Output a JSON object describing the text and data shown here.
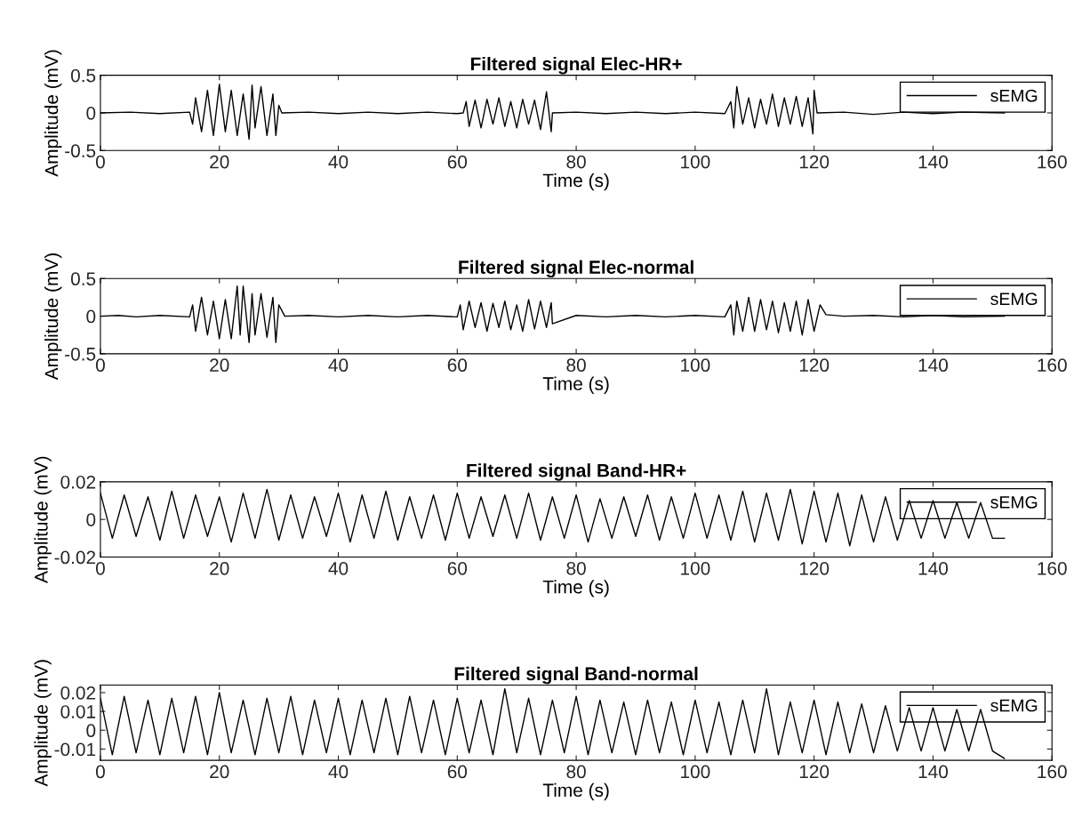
{
  "chart_data": [
    {
      "type": "line",
      "title": "Filtered signal Elec-HR+",
      "xlabel": "Time (s)",
      "ylabel": "Amplitude (mV)",
      "xlim": [
        0,
        160
      ],
      "xticks": [
        0,
        20,
        40,
        60,
        80,
        100,
        120,
        140,
        160
      ],
      "ylim": [
        -0.5,
        0.5
      ],
      "yticks": [
        -0.5,
        0,
        0.5
      ],
      "legend": "top right",
      "grid": false,
      "series": [
        {
          "name": "sEMG",
          "color": "#000000",
          "x": [
            0,
            5,
            10,
            15,
            15.5,
            16,
            17,
            18,
            19,
            20,
            21,
            22,
            23,
            24,
            25,
            25.5,
            26,
            27,
            28,
            29,
            29.5,
            30,
            30.5,
            35,
            40,
            45,
            50,
            55,
            60,
            61,
            61.5,
            62,
            63,
            64,
            65,
            66,
            67,
            68,
            69,
            70,
            71,
            72,
            73,
            74,
            75,
            75.8,
            76,
            80,
            85,
            90,
            95,
            100,
            105,
            106,
            106.5,
            107,
            108,
            109,
            110,
            111,
            112,
            113,
            114,
            115,
            116,
            117,
            118,
            119,
            119.8,
            120,
            120.5,
            125,
            130,
            135,
            140,
            145,
            152
          ],
          "values": [
            0,
            0.01,
            -0.01,
            0.01,
            -0.15,
            0.2,
            -0.25,
            0.3,
            -0.3,
            0.38,
            -0.25,
            0.3,
            -0.3,
            0.25,
            -0.35,
            0.37,
            -0.2,
            0.35,
            -0.3,
            0.25,
            -0.3,
            0.1,
            0,
            0.01,
            -0.01,
            0.01,
            -0.01,
            0.01,
            -0.01,
            0,
            0.15,
            -0.18,
            0.17,
            -0.2,
            0.18,
            -0.15,
            0.2,
            -0.18,
            0.15,
            -0.2,
            0.18,
            -0.15,
            0.17,
            -0.22,
            0.28,
            -0.25,
            0,
            0.01,
            -0.01,
            0.01,
            -0.01,
            0.01,
            -0.01,
            0.15,
            -0.2,
            0.35,
            -0.15,
            0.2,
            -0.2,
            0.18,
            -0.15,
            0.25,
            -0.18,
            0.2,
            -0.15,
            0.22,
            -0.18,
            0.2,
            -0.28,
            0.3,
            0,
            0.01,
            -0.02,
            0.01,
            -0.01,
            0.01,
            0
          ]
        }
      ]
    },
    {
      "type": "line",
      "title": "Filtered signal Elec-normal",
      "xlabel": "Time (s)",
      "ylabel": "Amplitude (mV)",
      "xlim": [
        0,
        160
      ],
      "xticks": [
        0,
        20,
        40,
        60,
        80,
        100,
        120,
        140,
        160
      ],
      "ylim": [
        -0.5,
        0.5
      ],
      "yticks": [
        -0.5,
        0,
        0.5
      ],
      "legend": "top right",
      "grid": false,
      "series": [
        {
          "name": "sEMG",
          "color": "#000000",
          "x": [
            0,
            3,
            6,
            10,
            15,
            15.5,
            16,
            17,
            18,
            19,
            20,
            21,
            22,
            23,
            23.5,
            24,
            25,
            25.5,
            26,
            27,
            28,
            29,
            29.5,
            30,
            31,
            35,
            40,
            45,
            50,
            55,
            60,
            60.5,
            61,
            62,
            63,
            64,
            65,
            66,
            67,
            68,
            69,
            70,
            71,
            72,
            73,
            74,
            75,
            75.8,
            76,
            80,
            85,
            90,
            95,
            100,
            105,
            106,
            106.5,
            107,
            108,
            109,
            110,
            111,
            112,
            113,
            114,
            115,
            116,
            117,
            118,
            119,
            120,
            121,
            122,
            125,
            130,
            135,
            140,
            145,
            152
          ],
          "values": [
            0,
            0.01,
            -0.01,
            0.01,
            -0.01,
            0.15,
            -0.2,
            0.25,
            -0.25,
            0.2,
            -0.3,
            0.22,
            -0.3,
            0.4,
            -0.25,
            0.4,
            -0.35,
            0.3,
            -0.25,
            0.3,
            -0.28,
            0.25,
            -0.35,
            0.15,
            0,
            0.01,
            -0.01,
            0.01,
            -0.01,
            0.01,
            -0.01,
            0.15,
            -0.18,
            0.2,
            -0.15,
            0.18,
            -0.2,
            0.17,
            -0.15,
            0.2,
            -0.18,
            0.15,
            -0.2,
            0.22,
            -0.17,
            0.2,
            -0.15,
            0.18,
            -0.1,
            0.01,
            -0.01,
            0.01,
            -0.01,
            0.01,
            -0.01,
            0.15,
            -0.25,
            0.2,
            -0.2,
            0.25,
            -0.2,
            0.22,
            -0.18,
            0.2,
            -0.22,
            0.18,
            -0.2,
            0.2,
            -0.25,
            0.22,
            -0.2,
            0.15,
            0.02,
            0,
            0.01,
            -0.01,
            0.01,
            -0.01,
            0
          ]
        }
      ]
    },
    {
      "type": "line",
      "title": "Filtered signal Band-HR+",
      "xlabel": "Time (s)",
      "ylabel": "Amplitude (mV)",
      "xlim": [
        0,
        160
      ],
      "xticks": [
        0,
        20,
        40,
        60,
        80,
        100,
        120,
        140,
        160
      ],
      "ylim": [
        -0.02,
        0.02
      ],
      "yticks": [
        -0.02,
        0,
        0.02
      ],
      "legend": "top right",
      "grid": false,
      "series": [
        {
          "name": "sEMG",
          "color": "#000000",
          "x": [
            0,
            2,
            4,
            6,
            8,
            10,
            12,
            14,
            16,
            18,
            20,
            22,
            24,
            26,
            28,
            30,
            32,
            34,
            36,
            38,
            40,
            42,
            44,
            46,
            48,
            50,
            52,
            54,
            56,
            58,
            60,
            62,
            64,
            66,
            68,
            70,
            72,
            74,
            76,
            78,
            80,
            82,
            84,
            86,
            88,
            90,
            92,
            94,
            96,
            98,
            100,
            102,
            104,
            106,
            108,
            110,
            112,
            114,
            116,
            118,
            120,
            122,
            124,
            126,
            128,
            130,
            132,
            134,
            136,
            138,
            140,
            142,
            144,
            146,
            148,
            150,
            152
          ],
          "values": [
            0.014,
            -0.01,
            0.013,
            -0.009,
            0.012,
            -0.011,
            0.015,
            -0.01,
            0.013,
            -0.009,
            0.012,
            -0.012,
            0.014,
            -0.01,
            0.016,
            -0.011,
            0.013,
            -0.01,
            0.012,
            -0.009,
            0.014,
            -0.012,
            0.013,
            -0.01,
            0.015,
            -0.011,
            0.012,
            -0.01,
            0.013,
            -0.011,
            0.014,
            -0.01,
            0.012,
            -0.009,
            0.013,
            -0.01,
            0.014,
            -0.011,
            0.012,
            -0.01,
            0.013,
            -0.012,
            0.011,
            -0.01,
            0.012,
            -0.009,
            0.013,
            -0.011,
            0.012,
            -0.01,
            0.014,
            -0.01,
            0.013,
            -0.011,
            0.015,
            -0.012,
            0.014,
            -0.011,
            0.016,
            -0.013,
            0.015,
            -0.012,
            0.014,
            -0.014,
            0.013,
            -0.012,
            0.012,
            -0.011,
            0.01,
            -0.01,
            0.01,
            -0.01,
            0.009,
            -0.01,
            0.009,
            -0.01,
            -0.01
          ]
        }
      ]
    },
    {
      "type": "line",
      "title": "Filtered signal Band-normal",
      "xlabel": "Time (s)",
      "ylabel": "Amplitude (mV)",
      "xlim": [
        0,
        160
      ],
      "xticks": [
        0,
        20,
        40,
        60,
        80,
        100,
        120,
        140,
        160
      ],
      "ylim": [
        -0.016,
        0.024
      ],
      "yticks": [
        -0.01,
        0,
        0.01,
        0.02
      ],
      "legend": "top right",
      "grid": false,
      "series": [
        {
          "name": "sEMG",
          "color": "#000000",
          "x": [
            0,
            2,
            4,
            6,
            8,
            10,
            12,
            14,
            16,
            18,
            20,
            22,
            24,
            26,
            28,
            30,
            32,
            34,
            36,
            38,
            40,
            42,
            44,
            46,
            48,
            50,
            52,
            54,
            56,
            58,
            60,
            62,
            64,
            66,
            68,
            70,
            72,
            74,
            76,
            78,
            80,
            82,
            84,
            86,
            88,
            90,
            92,
            94,
            96,
            98,
            100,
            102,
            104,
            106,
            108,
            110,
            112,
            114,
            116,
            118,
            120,
            122,
            124,
            126,
            128,
            130,
            132,
            134,
            136,
            138,
            140,
            142,
            144,
            146,
            148,
            150,
            152
          ],
          "values": [
            0.017,
            -0.013,
            0.018,
            -0.012,
            0.016,
            -0.013,
            0.017,
            -0.012,
            0.018,
            -0.013,
            0.02,
            -0.012,
            0.016,
            -0.013,
            0.017,
            -0.012,
            0.018,
            -0.013,
            0.016,
            -0.012,
            0.017,
            -0.013,
            0.016,
            -0.012,
            0.017,
            -0.013,
            0.018,
            -0.012,
            0.016,
            -0.013,
            0.017,
            -0.012,
            0.016,
            -0.013,
            0.022,
            -0.012,
            0.017,
            -0.013,
            0.016,
            -0.012,
            0.018,
            -0.013,
            0.016,
            -0.012,
            0.015,
            -0.013,
            0.016,
            -0.012,
            0.015,
            -0.013,
            0.016,
            -0.012,
            0.015,
            -0.013,
            0.016,
            -0.012,
            0.022,
            -0.013,
            0.015,
            -0.012,
            0.016,
            -0.013,
            0.015,
            -0.012,
            0.014,
            -0.012,
            0.013,
            -0.011,
            0.012,
            -0.011,
            0.012,
            -0.011,
            0.011,
            -0.011,
            0.011,
            -0.011,
            -0.015
          ]
        }
      ]
    }
  ]
}
